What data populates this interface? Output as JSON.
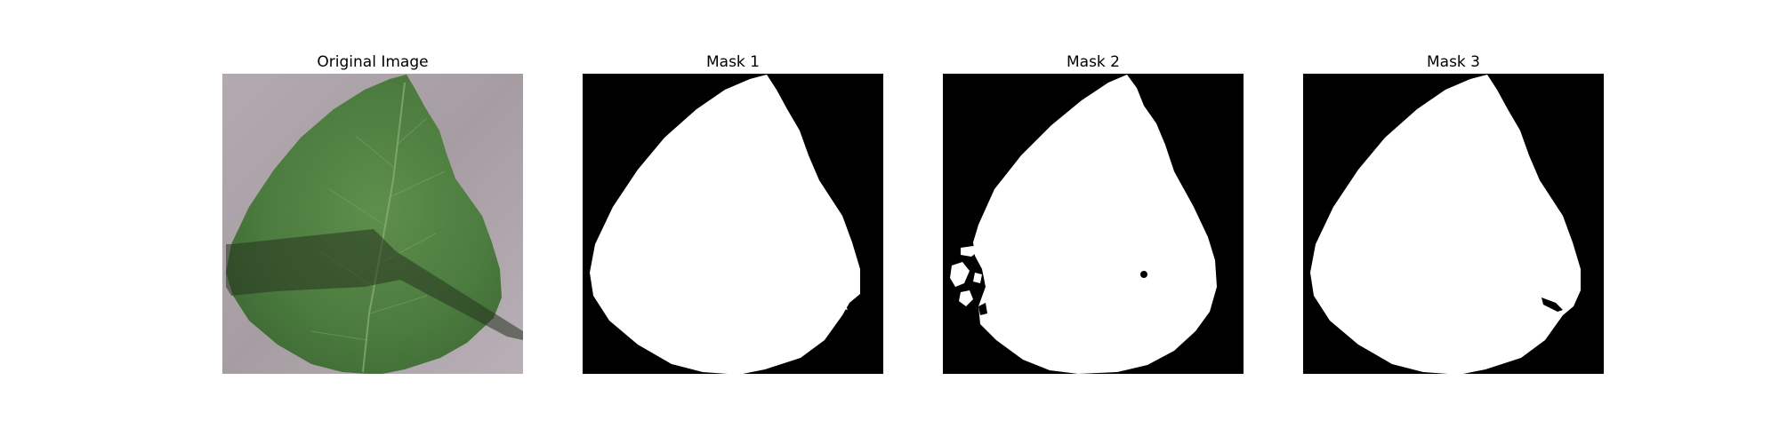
{
  "panels": [
    {
      "title": "Original Image",
      "kind": "photo"
    },
    {
      "title": "Mask 1",
      "kind": "mask"
    },
    {
      "title": "Mask 2",
      "kind": "mask"
    },
    {
      "title": "Mask 3",
      "kind": "mask"
    }
  ],
  "colors": {
    "background_surface": "#a89fa4",
    "leaf_dark": "#3f6b35",
    "leaf_light": "#5e8f4c",
    "shadow": "#2c3b2a",
    "mask_foreground": "#ffffff",
    "mask_background": "#000000"
  }
}
